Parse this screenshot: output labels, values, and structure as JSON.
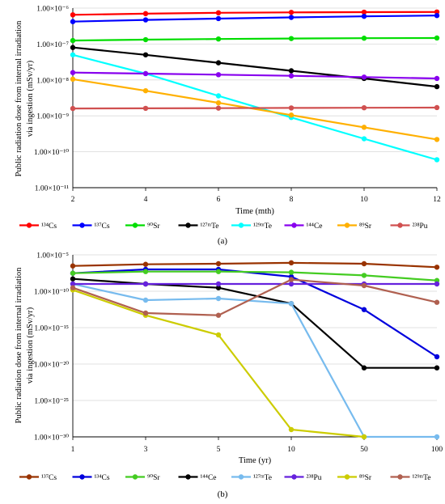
{
  "chart_data": [
    {
      "panel": "(a)",
      "type": "line",
      "xlabel": "Time (mth)",
      "ylabel": [
        "Public radiation dose from internal irradiation",
        "via ingestion (mSv/yr)"
      ],
      "x": [
        2,
        4,
        6,
        8,
        10,
        12
      ],
      "xlim": [
        2,
        12
      ],
      "yscale": "log",
      "ylim": [
        1e-11,
        1e-06
      ],
      "ytick_exps": [
        -6,
        -7,
        -8,
        -9,
        -10,
        -11
      ],
      "ytick_labels": [
        "1.00×10⁻⁶",
        "1.00×10⁻⁷",
        "1.00×10⁻⁸",
        "1.00×10⁻⁹",
        "1.00×10⁻¹⁰",
        "1.00×10⁻¹¹"
      ],
      "xtick_labels": [
        "2",
        "4",
        "6",
        "8",
        "10",
        "12"
      ],
      "gridlines": "horizontal",
      "legend_placement": "bottom",
      "series": [
        {
          "name": "¹³⁴Cs",
          "color": "#ff0000",
          "values": [
            6.5e-07,
            7e-07,
            7.4e-07,
            7.6e-07,
            7.7e-07,
            7.8e-07
          ]
        },
        {
          "name": "¹³⁷Cs",
          "color": "#0000ff",
          "values": [
            4.2e-07,
            4.7e-07,
            5.1e-07,
            5.5e-07,
            5.9e-07,
            6.2e-07
          ]
        },
        {
          "name": "⁹⁰Sr",
          "color": "#00dd00",
          "values": [
            1.25e-07,
            1.32e-07,
            1.38e-07,
            1.42e-07,
            1.45e-07,
            1.47e-07
          ]
        },
        {
          "name": "¹²⁷ᵐTe",
          "color": "#000000",
          "values": [
            8e-08,
            5e-08,
            3e-08,
            1.8e-08,
            1.1e-08,
            6.5e-09
          ]
        },
        {
          "name": "¹²⁹ᵐTe",
          "color": "#00ffff",
          "values": [
            5e-08,
            1.5e-08,
            3.6e-09,
            9e-10,
            2.3e-10,
            6e-11
          ]
        },
        {
          "name": "¹⁴⁴Ce",
          "color": "#8800ee",
          "values": [
            1.6e-08,
            1.5e-08,
            1.4e-08,
            1.3e-08,
            1.2e-08,
            1.1e-08
          ]
        },
        {
          "name": "⁸⁹Sr",
          "color": "#ffb000",
          "values": [
            1.05e-08,
            5e-09,
            2.3e-09,
            1.05e-09,
            4.8e-10,
            2.2e-10
          ]
        },
        {
          "name": "²³⁸Pu",
          "color": "#d05050",
          "values": [
            1.6e-09,
            1.62e-09,
            1.64e-09,
            1.66e-09,
            1.68e-09,
            1.7e-09
          ]
        }
      ]
    },
    {
      "panel": "(b)",
      "type": "line",
      "xlabel": "Time (yr)",
      "ylabel": [
        "Public radiation dose from internal irradiation",
        "via ingestion (mSv/yr)"
      ],
      "x": [
        1,
        3,
        5,
        10,
        50,
        100
      ],
      "xtick_labels": [
        "1",
        "3",
        "5",
        "10",
        "50",
        "100"
      ],
      "x_axis": "categorical, evenly spaced",
      "yscale": "log",
      "ylim": [
        1e-30,
        1e-05
      ],
      "ytick_exps": [
        -5,
        -10,
        -15,
        -20,
        -25,
        -30
      ],
      "ytick_labels": [
        "1.00×10⁻⁵",
        "1.00×10⁻¹⁰",
        "1.00×10⁻¹⁵",
        "1.00×10⁻²⁰",
        "1.00×10⁻²⁵",
        "1.00×10⁻³⁰"
      ],
      "gridlines": "horizontal",
      "legend_placement": "bottom",
      "series": [
        {
          "name": "¹³⁷Cs",
          "color": "#993300",
          "values": [
            3e-07,
            5e-07,
            6e-07,
            8e-07,
            6e-07,
            2e-07
          ]
        },
        {
          "name": "¹³⁴Cs",
          "color": "#0000dd",
          "values": [
            3e-08,
            1e-07,
            1e-07,
            1e-08,
            3e-13,
            1e-19
          ]
        },
        {
          "name": "⁹⁰Sr",
          "color": "#44cc22",
          "values": [
            3e-08,
            5e-08,
            5e-08,
            4e-08,
            1.5e-08,
            3e-09
          ]
        },
        {
          "name": "¹⁴⁴Ce",
          "color": "#000000",
          "values": [
            5e-09,
            1e-09,
            3e-10,
            2e-12,
            3e-21,
            3e-21
          ]
        },
        {
          "name": "¹²⁷ᵐTe",
          "color": "#77bbee",
          "values": [
            1e-09,
            6e-12,
            1e-11,
            2e-12,
            1e-30,
            1e-30
          ]
        },
        {
          "name": "²³⁸Pu",
          "color": "#6622dd",
          "values": [
            1e-09,
            1e-09,
            1e-09,
            1e-09,
            1e-09,
            1e-09
          ]
        },
        {
          "name": "⁸⁹Sr",
          "color": "#cccc00",
          "values": [
            1.5e-10,
            5e-14,
            1e-16,
            1e-29,
            1e-30,
            null
          ]
        },
        {
          "name": "¹²⁹ᵐTe",
          "color": "#b06050",
          "values": [
            3e-10,
            1e-13,
            5e-14,
            4e-09,
            6e-10,
            3e-12
          ]
        }
      ]
    }
  ]
}
